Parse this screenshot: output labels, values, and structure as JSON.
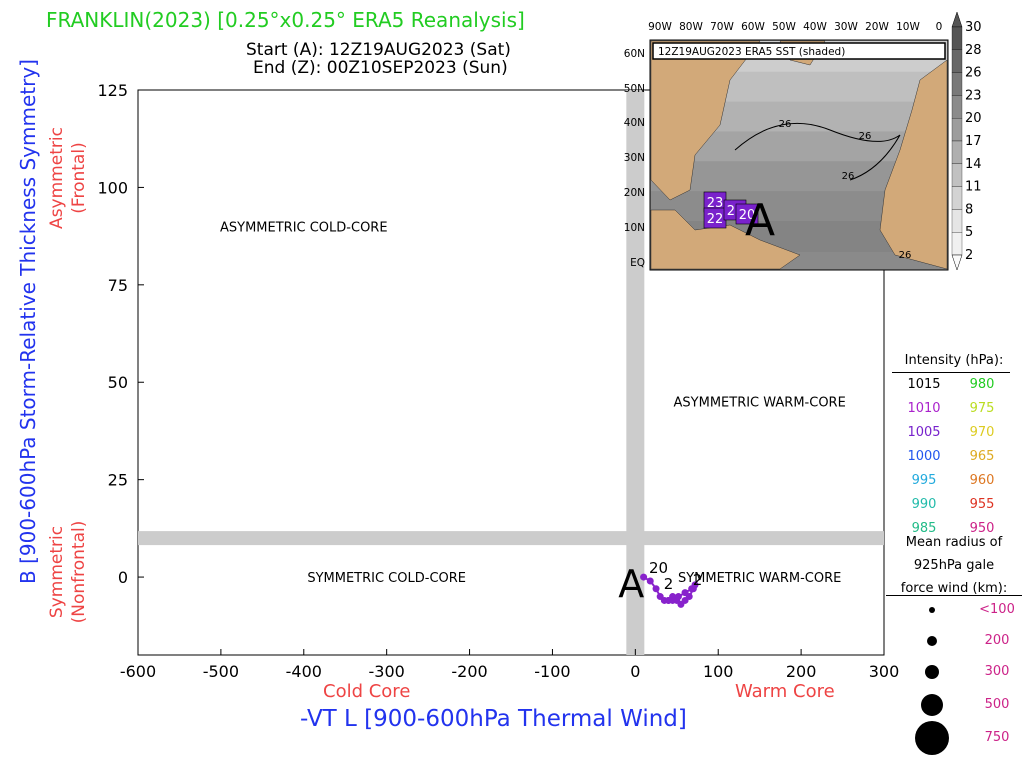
{
  "header": {
    "title": "FRANKLIN(2023) [0.25°x0.25° ERA5 Reanalysis]",
    "start": "Start (A): 12Z19AUG2023 (Sat)",
    "end": "End (Z): 00Z10SEP2023 (Sun)"
  },
  "chart_data": {
    "type": "scatter",
    "title": "FRANKLIN(2023) [0.25°x0.25° ERA5 Reanalysis]",
    "xlabel": "-VT L [900-600hPa Thermal Wind]",
    "ylabel": "B [900-600hPa Storm-Relative Thickness Symmetry]",
    "xlim": [
      -600,
      300
    ],
    "ylim": [
      -20,
      125
    ],
    "x_ticks": [
      -600,
      -500,
      -400,
      -300,
      -200,
      -100,
      0,
      100,
      200,
      300
    ],
    "y_ticks": [
      0,
      25,
      50,
      75,
      100,
      125
    ],
    "x_tick_labels": [
      "-600",
      "-500",
      "-400",
      "-300",
      "-200",
      "-100",
      "0",
      "100",
      "200",
      "300"
    ],
    "y_tick_labels": [
      "0",
      "25",
      "50",
      "75",
      "100",
      "125"
    ],
    "grid": false,
    "threshold_lines": {
      "x": 0,
      "y": 10
    },
    "quadrant_labels": [
      {
        "text": "ASYMMETRIC COLD-CORE",
        "x": -400,
        "y": 90
      },
      {
        "text": "ASYMMETRIC WARM-CORE",
        "x": 150,
        "y": 45
      },
      {
        "text": "SYMMETRIC COLD-CORE",
        "x": -300,
        "y": 0
      },
      {
        "text": "SYMMETRIC WARM-CORE",
        "x": 150,
        "y": 0
      }
    ],
    "side_labels": {
      "asymmetric": "Asymmetric",
      "frontal": "(Frontal)",
      "symmetric": "Symmetric",
      "nonfrontal": "(Nonfrontal)",
      "cold_core": "Cold Core",
      "warm_core": "Warm Core"
    },
    "track": {
      "x": [
        10,
        18,
        25,
        30,
        35,
        40,
        45,
        50,
        55,
        60,
        65,
        70,
        72,
        68,
        60,
        52,
        45,
        40
      ],
      "y": [
        0,
        -1,
        -3,
        -5,
        -6,
        -6,
        -5,
        -6,
        -7,
        -6,
        -5,
        -3,
        -2,
        -3,
        -4,
        -5,
        -6,
        -6
      ],
      "color": "#8822cc"
    },
    "start_marker": {
      "text": "A",
      "x": -5,
      "y": -1
    },
    "day_labels": [
      {
        "text": "20",
        "x": 28,
        "y": 1
      },
      {
        "text": "2",
        "x": 40,
        "y": -3
      },
      {
        "text": "2",
        "x": 75,
        "y": -2
      }
    ]
  },
  "inset": {
    "title": "12Z19AUG2023 ERA5 SST (shaded)",
    "lon_labels": [
      "90W",
      "80W",
      "70W",
      "60W",
      "50W",
      "40W",
      "30W",
      "20W",
      "10W",
      "0"
    ],
    "lat_labels": [
      "60N",
      "50N",
      "40N",
      "30N",
      "20N",
      "10N",
      "EQ"
    ],
    "colorbar_labels": [
      "30",
      "28",
      "26",
      "23",
      "20",
      "17",
      "14",
      "11",
      "8",
      "5",
      "2"
    ],
    "contour_labels": [
      "26",
      "26",
      "26",
      "26"
    ],
    "boxes": [
      "23",
      "22",
      "21",
      "20"
    ],
    "start_marker": "A"
  },
  "legend": {
    "intensity_title": "Intensity (hPa):",
    "intensity_rows": [
      {
        "left": "1015",
        "left_color": "#000000",
        "right": "980",
        "right_color": "#22cc22"
      },
      {
        "left": "1010",
        "left_color": "#aa22cc",
        "right": "975",
        "right_color": "#bbdd22"
      },
      {
        "left": "1005",
        "left_color": "#7722cc",
        "right": "970",
        "right_color": "#ddcc22"
      },
      {
        "left": "1000",
        "left_color": "#2255ee",
        "right": "965",
        "right_color": "#ddaa22"
      },
      {
        "left": "995",
        "left_color": "#22aadd",
        "right": "960",
        "right_color": "#dd7722"
      },
      {
        "left": "990",
        "left_color": "#22bbaa",
        "right": "955",
        "right_color": "#dd3322"
      },
      {
        "left": "985",
        "left_color": "#22bb88",
        "right": "950",
        "right_color": "#cc2288"
      }
    ],
    "radius_title_lines": [
      "Mean radius of",
      "925hPa gale",
      "force wind (km):"
    ],
    "radius_rows": [
      "<100",
      "200",
      "300",
      "500",
      "750"
    ],
    "radius_color": "#cc2288"
  }
}
